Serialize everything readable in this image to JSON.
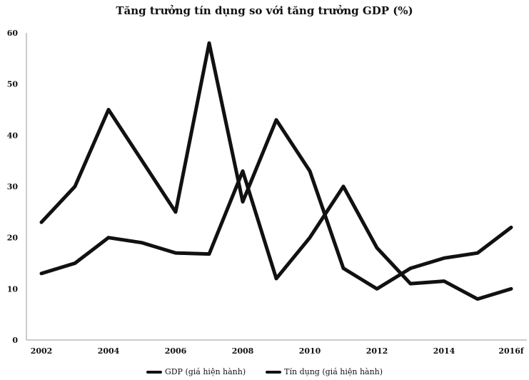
{
  "chart_data": {
    "type": "line",
    "title": "Tăng trưởng tín dụng so với tăng trưởng GDP (%)",
    "x": [
      "2002",
      "2003",
      "2004",
      "2005",
      "2006",
      "2007",
      "2008",
      "2009",
      "2010",
      "2011",
      "2012",
      "2013",
      "2014",
      "2015",
      "2016f"
    ],
    "x_tick_labels": [
      "2002",
      "2004",
      "2006",
      "2008",
      "2010",
      "2012",
      "2014",
      "2016f"
    ],
    "y_ticks": [
      0,
      10,
      20,
      30,
      40,
      50,
      60
    ],
    "ylim": [
      0,
      60
    ],
    "series": [
      {
        "name": "GDP (giá hiện hành)",
        "color": "#111111",
        "values": [
          13,
          15,
          20,
          19,
          17,
          16.8,
          33,
          12,
          20,
          30,
          18,
          11,
          11.5,
          8,
          10
        ]
      },
      {
        "name": "Tín dụng (giá hiện hành)",
        "color": "#111111",
        "values": [
          23,
          30,
          45,
          35,
          25,
          58,
          27,
          43,
          33,
          14,
          10,
          14,
          16,
          17,
          22
        ]
      }
    ],
    "grid": false,
    "legend_position": "bottom"
  }
}
